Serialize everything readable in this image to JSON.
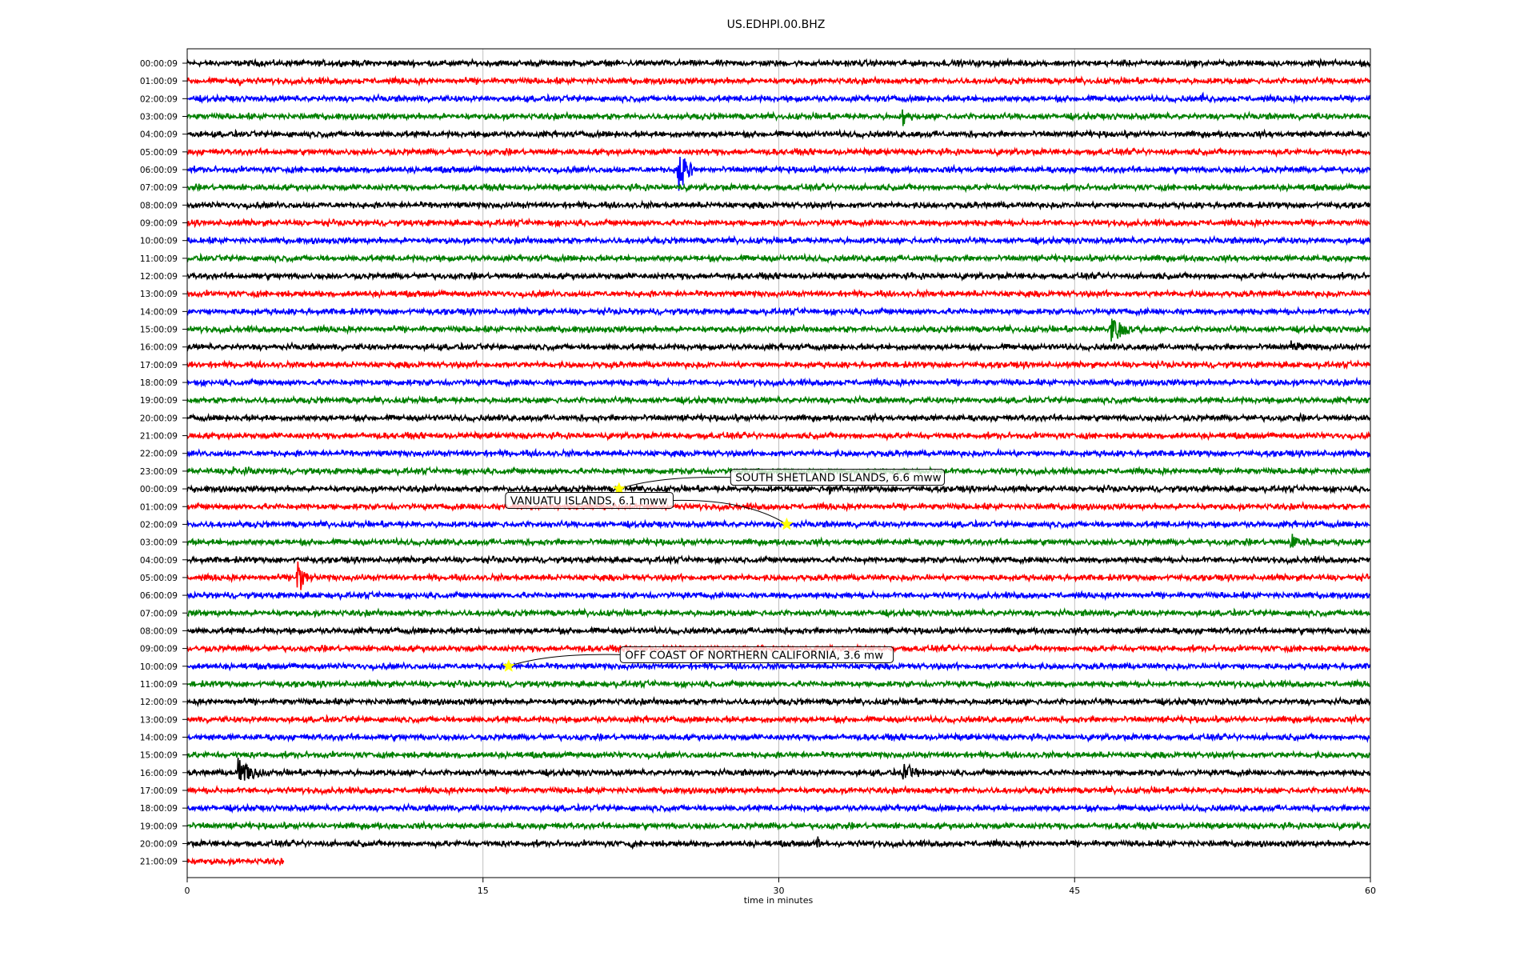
{
  "chart_data": {
    "type": "line",
    "title": "US.EDHPI.00.BHZ",
    "xlabel": "time in minutes",
    "ylabel": "",
    "xlim": [
      0,
      60
    ],
    "x_ticks": [
      "0",
      "15",
      "30",
      "45",
      "60"
    ],
    "x_tick_values": [
      0,
      15,
      30,
      45,
      60
    ],
    "grid": "vertical lines at x ticks",
    "trace_colors": [
      "#000000",
      "#ff0000",
      "#0000ff",
      "#008000"
    ],
    "row_labels": [
      "00:00:09",
      "01:00:09",
      "02:00:09",
      "03:00:09",
      "04:00:09",
      "05:00:09",
      "06:00:09",
      "07:00:09",
      "08:00:09",
      "09:00:09",
      "10:00:09",
      "11:00:09",
      "12:00:09",
      "13:00:09",
      "14:00:09",
      "15:00:09",
      "16:00:09",
      "17:00:09",
      "18:00:09",
      "19:00:09",
      "20:00:09",
      "21:00:09",
      "22:00:09",
      "23:00:09",
      "00:00:09",
      "01:00:09",
      "02:00:09",
      "03:00:09",
      "04:00:09",
      "05:00:09",
      "06:00:09",
      "07:00:09",
      "08:00:09",
      "09:00:09",
      "10:00:09",
      "11:00:09",
      "12:00:09",
      "13:00:09",
      "14:00:09",
      "15:00:09",
      "16:00:09",
      "17:00:09",
      "18:00:09",
      "19:00:09",
      "20:00:09",
      "21:00:09"
    ],
    "last_row_end_minute": 4.9,
    "noise_level": 0.14,
    "events": [
      {
        "row": 6,
        "minute": 24.9,
        "amplitude": 2.8,
        "duration": 1.2
      },
      {
        "row": 29,
        "minute": 5.6,
        "amplitude": 2.0,
        "duration": 1.0
      },
      {
        "row": 40,
        "minute": 2.6,
        "amplitude": 2.0,
        "duration": 1.6
      },
      {
        "row": 15,
        "minute": 46.8,
        "amplitude": 1.4,
        "duration": 2.2
      },
      {
        "row": 3,
        "minute": 36.3,
        "amplitude": 0.9,
        "duration": 0.6
      },
      {
        "row": 16,
        "minute": 56.0,
        "amplitude": 0.6,
        "duration": 1.5
      },
      {
        "row": 40,
        "minute": 36.3,
        "amplitude": 0.9,
        "duration": 2.0
      },
      {
        "row": 27,
        "minute": 56.0,
        "amplitude": 0.9,
        "duration": 1.5
      },
      {
        "row": 0,
        "minute": 23.0,
        "amplitude": 0.5,
        "duration": 0.4
      },
      {
        "row": 1,
        "minute": 2.7,
        "amplitude": 0.6,
        "duration": 0.2
      },
      {
        "row": 2,
        "minute": 51.5,
        "amplitude": 0.5,
        "duration": 0.8
      },
      {
        "row": 23,
        "minute": 2.3,
        "amplitude": 0.5,
        "duration": 2.0
      },
      {
        "row": 24,
        "minute": 32.5,
        "amplitude": 0.5,
        "duration": 2.0
      },
      {
        "row": 44,
        "minute": 32.0,
        "amplitude": 0.6,
        "duration": 0.6
      },
      {
        "row": 44,
        "minute": 22.5,
        "amplitude": 0.5,
        "duration": 0.4
      }
    ],
    "annotations": [
      {
        "text": "SOUTH SHETLAND ISLANDS, 6.6 mww",
        "row": 24,
        "minute": 21.9,
        "label_minute": 27.8,
        "label_row": 23.35,
        "align": "left"
      },
      {
        "text": "VANUATU ISLANDS, 6.1 mww",
        "row": 26,
        "minute": 30.4,
        "label_minute": 24.4,
        "label_row": 24.65,
        "align": "right"
      },
      {
        "text": "OFF COAST OF NORTHERN CALIFORNIA, 3.6 mw",
        "row": 34,
        "minute": 16.3,
        "label_minute": 22.2,
        "label_row": 33.35,
        "align": "left"
      }
    ],
    "marker_color": "#ffff00"
  }
}
